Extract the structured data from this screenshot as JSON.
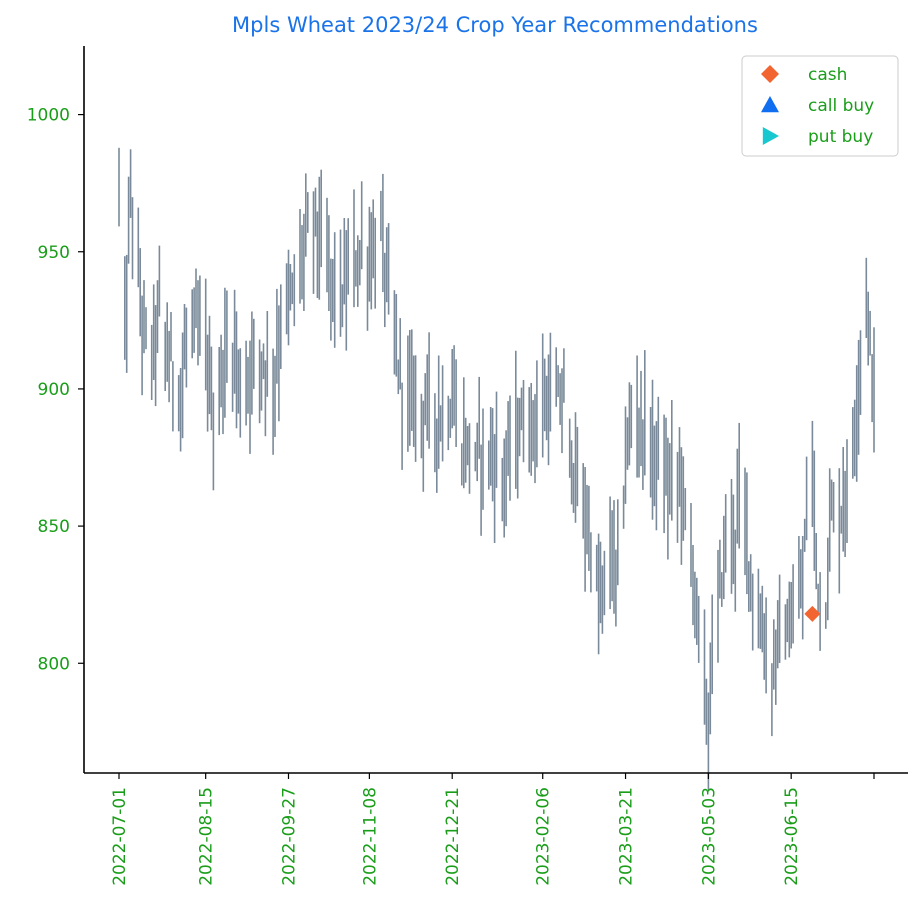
{
  "colors": {
    "title": "#1a73e8",
    "ticks": "#1a9e1a",
    "bars": "#7a8a9a",
    "cash": "#f26430",
    "call_buy": "#0f6ff0",
    "put_buy": "#18c8d0",
    "axes": "#000000"
  },
  "legend": {
    "placement": "top-right",
    "items": [
      {
        "label": "cash",
        "marker": "diamond",
        "color": "#f26430"
      },
      {
        "label": "call buy",
        "marker": "triangle-up",
        "color": "#0f6ff0"
      },
      {
        "label": "put buy",
        "marker": "triangle-right",
        "color": "#18c8d0"
      }
    ]
  },
  "chart_data": {
    "type": "bar",
    "title": "Mpls Wheat 2023/24 Crop Year Recommendations",
    "xlabel": "",
    "ylabel": "",
    "x_tick_labels": [
      "2022-07-01",
      "2022-08-15",
      "2022-09-27",
      "2022-11-08",
      "2022-12-21",
      "2023-02-06",
      "2023-03-21",
      "2023-05-03",
      "2023-06-15"
    ],
    "y_ticks": [
      800,
      850,
      900,
      950,
      1000
    ],
    "ylim": [
      760,
      1025
    ],
    "grid": false,
    "price_anchors": [
      [
        "2022-07-01",
        975
      ],
      [
        "2022-07-03",
        915
      ],
      [
        "2022-07-05",
        930
      ],
      [
        "2022-07-07",
        975
      ],
      [
        "2022-07-10",
        945
      ],
      [
        "2022-07-13",
        925
      ],
      [
        "2022-07-17",
        910
      ],
      [
        "2022-07-22",
        928
      ],
      [
        "2022-07-27",
        910
      ],
      [
        "2022-08-02",
        900
      ],
      [
        "2022-08-07",
        925
      ],
      [
        "2022-08-12",
        918
      ],
      [
        "2022-08-17",
        905
      ],
      [
        "2022-08-20",
        880
      ],
      [
        "2022-08-24",
        910
      ],
      [
        "2022-08-30",
        915
      ],
      [
        "2022-09-03",
        895
      ],
      [
        "2022-09-08",
        910
      ],
      [
        "2022-09-14",
        912
      ],
      [
        "2022-09-18",
        900
      ],
      [
        "2022-09-25",
        930
      ],
      [
        "2022-09-30",
        935
      ],
      [
        "2022-10-06",
        955
      ],
      [
        "2022-10-11",
        962
      ],
      [
        "2022-10-16",
        945
      ],
      [
        "2022-10-21",
        938
      ],
      [
        "2022-10-26",
        935
      ],
      [
        "2022-10-30",
        945
      ],
      [
        "2022-11-04",
        950
      ],
      [
        "2022-11-09",
        948
      ],
      [
        "2022-11-14",
        955
      ],
      [
        "2022-11-18",
        935
      ],
      [
        "2022-11-22",
        912
      ],
      [
        "2022-11-26",
        900
      ],
      [
        "2022-12-02",
        895
      ],
      [
        "2022-12-08",
        893
      ],
      [
        "2022-12-15",
        890
      ],
      [
        "2022-12-21",
        895
      ],
      [
        "2022-12-26",
        880
      ],
      [
        "2023-01-02",
        876
      ],
      [
        "2023-01-09",
        878
      ],
      [
        "2023-01-16",
        868
      ],
      [
        "2023-01-24",
        885
      ],
      [
        "2023-01-30",
        887
      ],
      [
        "2023-02-06",
        893
      ],
      [
        "2023-02-12",
        895
      ],
      [
        "2023-02-17",
        895
      ],
      [
        "2023-02-20",
        880
      ],
      [
        "2023-02-25",
        860
      ],
      [
        "2023-03-02",
        848
      ],
      [
        "2023-03-08",
        820
      ],
      [
        "2023-03-12",
        840
      ],
      [
        "2023-03-17",
        832
      ],
      [
        "2023-03-21",
        872
      ],
      [
        "2023-03-25",
        895
      ],
      [
        "2023-03-30",
        885
      ],
      [
        "2023-04-06",
        875
      ],
      [
        "2023-04-12",
        865
      ],
      [
        "2023-04-18",
        870
      ],
      [
        "2023-04-24",
        840
      ],
      [
        "2023-04-30",
        800
      ],
      [
        "2023-05-03",
        778
      ],
      [
        "2023-05-06",
        810
      ],
      [
        "2023-05-12",
        845
      ],
      [
        "2023-05-17",
        848
      ],
      [
        "2023-05-20",
        865
      ],
      [
        "2023-05-24",
        840
      ],
      [
        "2023-05-29",
        815
      ],
      [
        "2023-06-02",
        805
      ],
      [
        "2023-06-05",
        795
      ],
      [
        "2023-06-08",
        810
      ],
      [
        "2023-06-13",
        812
      ],
      [
        "2023-06-18",
        815
      ],
      [
        "2023-06-21",
        830
      ],
      [
        "2023-06-25",
        880
      ],
      [
        "2023-06-29",
        830
      ],
      [
        "2023-07-02",
        815
      ],
      [
        "2023-07-06",
        855
      ],
      [
        "2023-07-11",
        855
      ],
      [
        "2023-07-16",
        870
      ],
      [
        "2023-07-20",
        905
      ],
      [
        "2023-07-24",
        935
      ],
      [
        "2023-07-28",
        895
      ]
    ],
    "markers": [
      {
        "type": "cash",
        "date": "2023-06-26",
        "value": 818
      }
    ]
  }
}
